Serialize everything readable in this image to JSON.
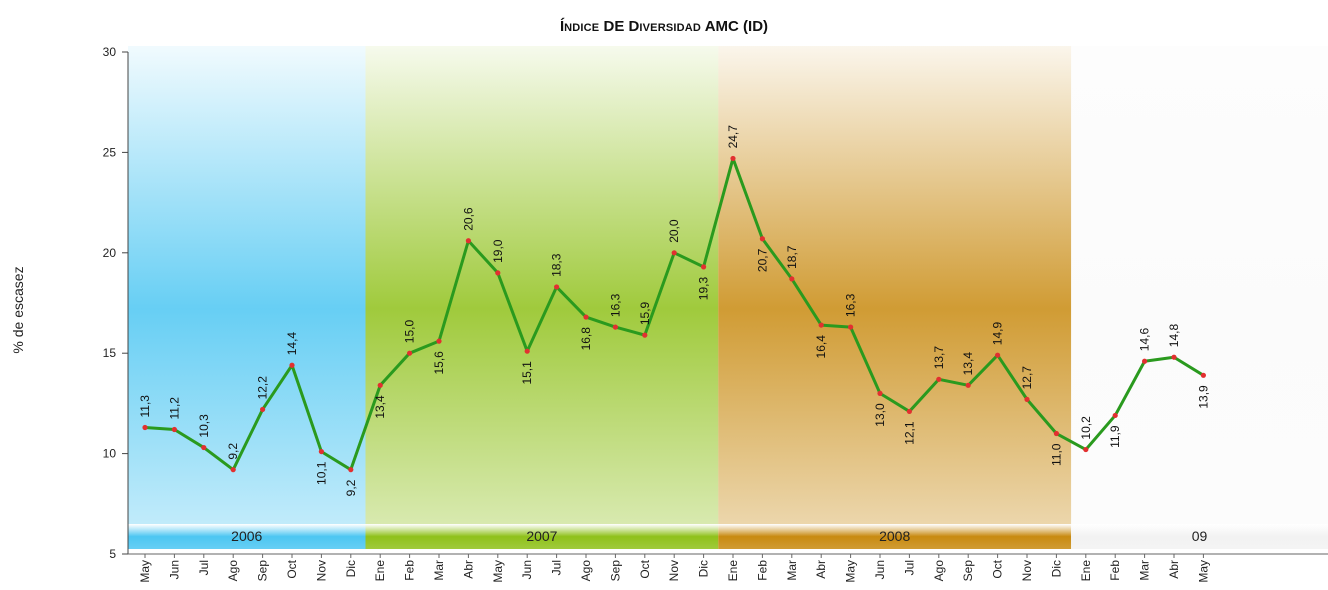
{
  "title": "ÍNDICE DE DIVERSIDAD AMC (ID)",
  "colors": {
    "line": "#2a9a1e",
    "point": "#e23030",
    "band_2006": "#4cc6f2",
    "band_2007": "#8fc11a",
    "band_2008": "#c88a10",
    "band_09": "#f2f2f2"
  },
  "chart_data": {
    "type": "line",
    "title": "ÍNDICE DE DIVERSIDAD AMC (ID)",
    "xlabel": "",
    "ylabel": "% de escasez",
    "ylim": [
      5,
      30
    ],
    "yticks": [
      "30",
      "25",
      "20",
      "15",
      "10",
      "5"
    ],
    "grid": false,
    "categories": [
      "May",
      "Jun",
      "Jul",
      "Ago",
      "Sep",
      "Oct",
      "Nov",
      "Dic",
      "Ene",
      "Feb",
      "Mar",
      "Abr",
      "May",
      "Jun",
      "Jul",
      "Ago",
      "Sep",
      "Oct",
      "Nov",
      "Dic",
      "Ene",
      "Feb",
      "Mar",
      "Abr",
      "May",
      "Jun",
      "Jul",
      "Ago",
      "Sep",
      "Oct",
      "Nov",
      "Dic",
      "Ene",
      "Feb",
      "Mar",
      "Abr",
      "May"
    ],
    "values": [
      11.3,
      11.2,
      10.3,
      9.2,
      12.2,
      14.4,
      10.1,
      9.2,
      13.4,
      15.0,
      15.6,
      20.6,
      19.0,
      15.1,
      18.3,
      16.8,
      16.3,
      15.9,
      20.0,
      19.3,
      24.7,
      20.7,
      18.7,
      16.4,
      16.3,
      13.0,
      12.1,
      13.7,
      13.4,
      14.9,
      12.7,
      11.0,
      10.2,
      11.9,
      14.6,
      14.8,
      13.9
    ],
    "data_labels": [
      "11,3",
      "11,2",
      "10,3",
      "9,2",
      "12,2",
      "14,4",
      "10,1",
      "9,2",
      "13,4",
      "15,0",
      "15,6",
      "20,6",
      "19,0",
      "15,1",
      "18,3",
      "16,8",
      "16,3",
      "15,9",
      "20,0",
      "19,3",
      "24,7",
      "20,7",
      "18,7",
      "16,4",
      "16,3",
      "13,0",
      "12,1",
      "13,7",
      "13,4",
      "14,9",
      "12,7",
      "11,0",
      "10,2",
      "11,9",
      "14,6",
      "14,8",
      "13,9"
    ],
    "year_bands": [
      {
        "label": "2006",
        "first_index": 0,
        "last_index": 7
      },
      {
        "label": "2007",
        "first_index": 8,
        "last_index": 19
      },
      {
        "label": "2008",
        "first_index": 20,
        "last_index": 31
      },
      {
        "label": "09",
        "first_index": 32,
        "last_index": 36
      }
    ]
  }
}
